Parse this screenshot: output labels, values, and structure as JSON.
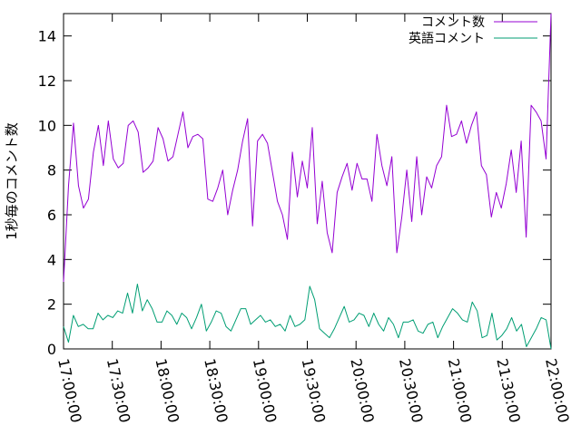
{
  "chart_data": {
    "type": "line",
    "title": "",
    "xlabel": "",
    "ylabel": "1秒毎のコメント数",
    "ylim": [
      0,
      15
    ],
    "yticks": [
      0,
      2,
      4,
      6,
      8,
      10,
      12,
      14
    ],
    "xlim": [
      "17:00:00",
      "22:00:00"
    ],
    "xticks": [
      "17:00:00",
      "17:30:00",
      "18:00:00",
      "18:30:00",
      "19:00:00",
      "19:30:00",
      "20:00:00",
      "20:30:00",
      "21:00:00",
      "21:30:00",
      "22:00:00"
    ],
    "grid": false,
    "legend_position": "top-right",
    "series": [
      {
        "name": "コメント数",
        "color": "#9400d3",
        "values": [
          3.0,
          7.3,
          10.1,
          7.3,
          6.3,
          6.7,
          8.8,
          10.0,
          8.2,
          10.2,
          8.5,
          8.1,
          8.3,
          10.0,
          10.2,
          9.7,
          7.9,
          8.1,
          8.4,
          9.9,
          9.4,
          8.4,
          8.6,
          9.6,
          10.6,
          9.0,
          9.5,
          9.6,
          9.4,
          6.7,
          6.6,
          7.2,
          8.0,
          6.0,
          7.1,
          8.0,
          9.3,
          10.3,
          5.5,
          9.3,
          9.6,
          9.2,
          7.9,
          6.6,
          6.0,
          4.9,
          8.8,
          6.8,
          8.4,
          7.2,
          9.9,
          5.6,
          7.5,
          5.2,
          4.3,
          7.0,
          7.7,
          8.3,
          7.1,
          8.3,
          7.6,
          7.6,
          6.6,
          9.6,
          8.2,
          7.3,
          8.6,
          4.3,
          5.9,
          8.0,
          5.7,
          8.6,
          6.0,
          7.7,
          7.2,
          8.2,
          8.6,
          10.9,
          9.5,
          9.6,
          10.2,
          9.2,
          10.0,
          10.6,
          8.2,
          7.8,
          5.9,
          7.0,
          6.3,
          7.4,
          8.9,
          7.0,
          9.3,
          5.0,
          10.9,
          10.6,
          10.2,
          8.5,
          15.0
        ]
      },
      {
        "name": "英語コメント",
        "color": "#009e73",
        "values": [
          1.0,
          0.3,
          1.5,
          1.0,
          1.1,
          0.9,
          0.9,
          1.6,
          1.3,
          1.5,
          1.4,
          1.7,
          1.6,
          2.5,
          1.6,
          2.9,
          1.7,
          2.2,
          1.8,
          1.2,
          1.2,
          1.7,
          1.5,
          1.1,
          1.6,
          1.4,
          0.9,
          1.4,
          2.0,
          0.8,
          1.2,
          1.7,
          1.6,
          1.0,
          0.8,
          1.3,
          1.8,
          1.8,
          1.1,
          1.3,
          1.5,
          1.2,
          1.3,
          1.0,
          1.1,
          0.8,
          1.5,
          1.0,
          1.1,
          1.3,
          2.8,
          2.2,
          0.9,
          0.7,
          0.5,
          0.9,
          1.4,
          1.9,
          1.2,
          1.3,
          1.6,
          1.5,
          1.0,
          1.6,
          1.1,
          0.8,
          1.4,
          1.1,
          0.5,
          1.2,
          1.2,
          1.3,
          0.8,
          0.7,
          1.1,
          1.2,
          0.5,
          1.0,
          1.4,
          1.8,
          1.6,
          1.3,
          1.2,
          2.1,
          1.7,
          0.5,
          0.6,
          1.6,
          0.4,
          0.6,
          0.9,
          1.4,
          0.8,
          1.1,
          0.1,
          0.5,
          0.9,
          1.4,
          1.3,
          0.0
        ]
      }
    ]
  }
}
